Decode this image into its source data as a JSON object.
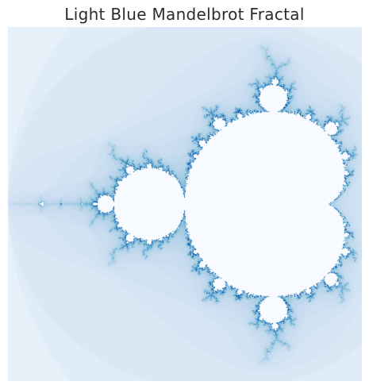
{
  "figure": {
    "title": "Light Blue Mandelbrot Fractal",
    "colormap": [
      "#f7fbff",
      "#deebf7",
      "#c6dbef",
      "#9ecae1",
      "#6baed6",
      "#4292c6",
      "#2171b5",
      "#08519c",
      "#08306b"
    ],
    "interior_color": "#f7fbff",
    "axes_visible": false,
    "region": {
      "real_range": [
        -2.0,
        0.5
      ],
      "imag_range": [
        -1.25,
        1.25
      ]
    },
    "max_iterations": 100
  }
}
